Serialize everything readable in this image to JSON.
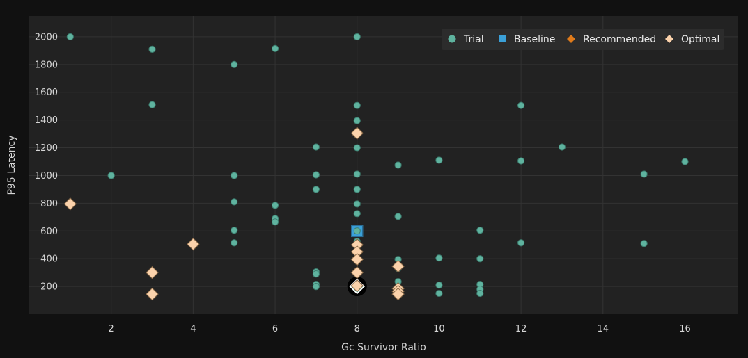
{
  "chart_data": {
    "type": "scatter",
    "xlabel": "Gc Survivor Ratio",
    "ylabel": "P95 Latency",
    "xlim": [
      0,
      17.3
    ],
    "ylim": [
      0,
      2150
    ],
    "xticks": [
      2,
      4,
      6,
      8,
      10,
      12,
      14,
      16
    ],
    "yticks": [
      200,
      400,
      600,
      800,
      1000,
      1200,
      1400,
      1600,
      1800,
      2000
    ],
    "grid": true,
    "legend_position": "top-right",
    "colors": {
      "background": "#111111",
      "plot_bg": "#222222",
      "grid": "#333333",
      "trial": "#5fb39f",
      "trial_edge": "#3d7d6f",
      "baseline": "#3ba0d8",
      "recommended": "#e07b1a",
      "optimal": "#fbd2ab",
      "optimal_edge": "#8a6a48",
      "legend_bg": "#2c2c2c"
    },
    "series": [
      {
        "name": "Trial",
        "marker": "circle",
        "points": [
          [
            1,
            2000
          ],
          [
            2,
            1000
          ],
          [
            3,
            1910
          ],
          [
            3,
            1510
          ],
          [
            5,
            1800
          ],
          [
            5,
            1000
          ],
          [
            5,
            810
          ],
          [
            5,
            605
          ],
          [
            5,
            515
          ],
          [
            6,
            1915
          ],
          [
            6,
            785
          ],
          [
            6,
            690
          ],
          [
            6,
            665
          ],
          [
            7,
            1205
          ],
          [
            7,
            1005
          ],
          [
            7,
            900
          ],
          [
            7,
            305
          ],
          [
            7,
            290
          ],
          [
            7,
            215
          ],
          [
            7,
            200
          ],
          [
            8,
            2000
          ],
          [
            8,
            1505
          ],
          [
            8,
            1395
          ],
          [
            8,
            1305
          ],
          [
            8,
            1200
          ],
          [
            8,
            1010
          ],
          [
            8,
            900
          ],
          [
            8,
            795
          ],
          [
            8,
            725
          ],
          [
            8,
            610
          ],
          [
            8,
            525
          ],
          [
            8,
            500
          ],
          [
            8,
            400
          ],
          [
            8,
            305
          ],
          [
            8,
            210
          ],
          [
            9,
            1075
          ],
          [
            9,
            705
          ],
          [
            9,
            395
          ],
          [
            9,
            330
          ],
          [
            9,
            235
          ],
          [
            9,
            195
          ],
          [
            9,
            175
          ],
          [
            10,
            1110
          ],
          [
            10,
            405
          ],
          [
            10,
            210
          ],
          [
            10,
            150
          ],
          [
            11,
            605
          ],
          [
            11,
            400
          ],
          [
            11,
            215
          ],
          [
            11,
            180
          ],
          [
            11,
            150
          ],
          [
            12,
            1505
          ],
          [
            12,
            1105
          ],
          [
            12,
            515
          ],
          [
            13,
            1205
          ],
          [
            15,
            1010
          ],
          [
            15,
            510
          ],
          [
            16,
            1100
          ]
        ]
      },
      {
        "name": "Baseline",
        "marker": "square",
        "points": [
          [
            8,
            600
          ]
        ]
      },
      {
        "name": "Recommended",
        "marker": "diamond",
        "points": [
          [
            8,
            200
          ]
        ]
      },
      {
        "name": "Optimal",
        "marker": "diamond",
        "points": [
          [
            1,
            795
          ],
          [
            3,
            300
          ],
          [
            3,
            145
          ],
          [
            4,
            505
          ],
          [
            8,
            1305
          ],
          [
            8,
            500
          ],
          [
            8,
            450
          ],
          [
            8,
            395
          ],
          [
            8,
            300
          ],
          [
            8,
            205
          ],
          [
            9,
            345
          ],
          [
            9,
            185
          ],
          [
            9,
            165
          ],
          [
            9,
            145
          ]
        ]
      }
    ]
  }
}
